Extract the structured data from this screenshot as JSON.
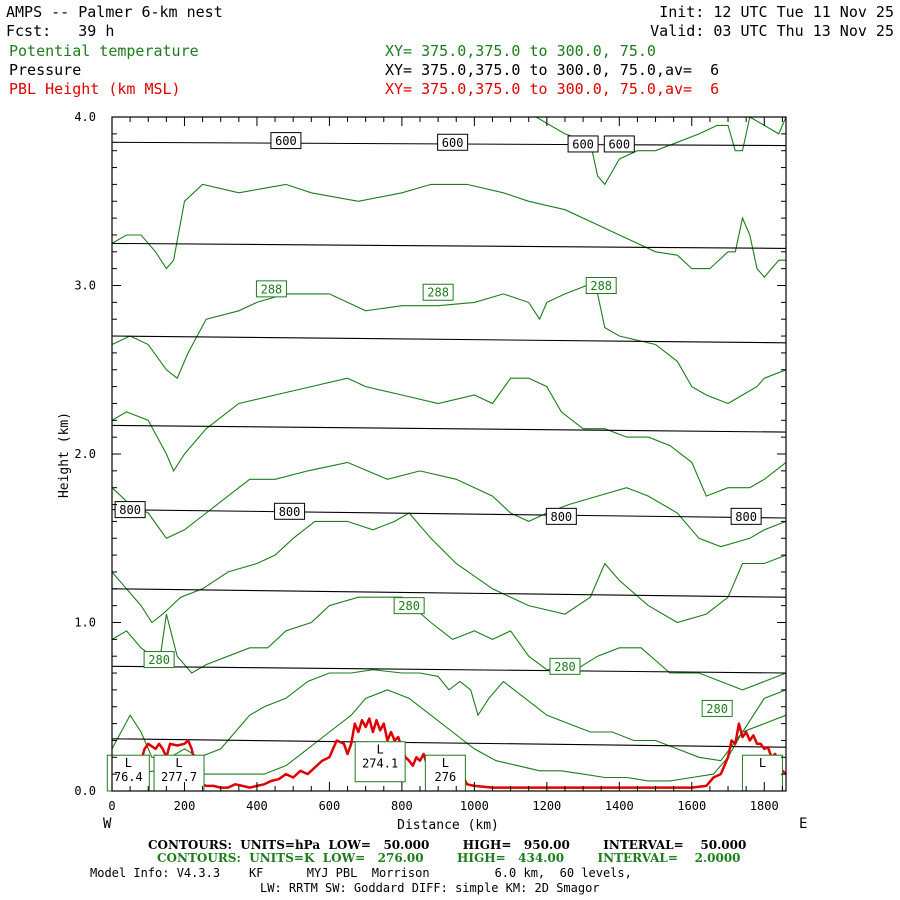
{
  "header": {
    "title": "AMPS -- Palmer 6-km nest",
    "init": "Init: 12 UTC Tue 11 Nov 25",
    "fcst": "Fcst:   39 h",
    "valid": "Valid: 03 UTC Thu 13 Nov 25",
    "field1_name": "Potential temperature",
    "field1_xy": "XY= 375.0,375.0 to 300.0, 75.0",
    "field2_name": "Pressure",
    "field2_xy": "XY= 375.0,375.0 to 300.0, 75.0,av=  6",
    "field3_name": "PBL Height (km MSL)",
    "field3_xy": "XY= 375.0,375.0 to 300.0, 75.0,av=  6"
  },
  "footer": {
    "contours1": "CONTOURS:  UNITS=hPa  LOW=   50.000        HIGH=   950.00        INTERVAL=    50.000",
    "contours2": "CONTOURS:  UNITS=K  LOW=   276.00        HIGH=   434.00        INTERVAL=    2.0000",
    "model1": "Model Info: V4.3.3    KF      MYJ PBL  Morrison         6.0 km,  60 levels,",
    "model2": "LW: RRTM SW: Goddard DIFF: simple KM: 2D Smagor"
  },
  "colors": {
    "theta": "#1e7b1e",
    "pressure": "#000000",
    "pbl": "#e00000"
  },
  "chart_data": {
    "type": "line",
    "xlabel": "Distance (km)",
    "ylabel": "Height (km)",
    "xlim": [
      0,
      1860
    ],
    "ylim": [
      0.0,
      4.0
    ],
    "xticks": [
      0,
      200,
      400,
      600,
      800,
      1000,
      1200,
      1400,
      1600,
      1800
    ],
    "yticks": [
      0.0,
      1.0,
      2.0,
      3.0,
      4.0
    ],
    "ytick_labels": [
      "0.0",
      "1.0",
      "2.0",
      "3.0",
      "4.0"
    ],
    "left_end": "W",
    "right_end": "E",
    "pressure_contours": [
      {
        "name": "600 hPa",
        "x": [
          0,
          1860
        ],
        "y": [
          3.85,
          3.83
        ]
      },
      {
        "name": "650 hPa",
        "x": [
          0,
          1860
        ],
        "y": [
          3.25,
          3.22
        ]
      },
      {
        "name": "700 hPa",
        "x": [
          0,
          1860
        ],
        "y": [
          2.7,
          2.66
        ]
      },
      {
        "name": "750 hPa",
        "x": [
          0,
          1860
        ],
        "y": [
          2.17,
          2.13
        ]
      },
      {
        "name": "800 hPa",
        "x": [
          0,
          1860
        ],
        "y": [
          1.67,
          1.62
        ]
      },
      {
        "name": "850 hPa",
        "x": [
          0,
          1860
        ],
        "y": [
          1.2,
          1.15
        ]
      },
      {
        "name": "900 hPa",
        "x": [
          0,
          1860
        ],
        "y": [
          0.74,
          0.7
        ]
      },
      {
        "name": "950 hPa",
        "x": [
          0,
          1860
        ],
        "y": [
          0.31,
          0.26
        ]
      }
    ],
    "pressure_labels": [
      {
        "text": "600",
        "x": 480,
        "y": 3.86
      },
      {
        "text": "600",
        "x": 940,
        "y": 3.85
      },
      {
        "text": "600",
        "x": 1300,
        "y": 3.84
      },
      {
        "text": "600",
        "x": 1400,
        "y": 3.84
      },
      {
        "text": "800",
        "x": 50,
        "y": 1.67
      },
      {
        "text": "800",
        "x": 490,
        "y": 1.66
      },
      {
        "text": "800",
        "x": 1240,
        "y": 1.63
      },
      {
        "text": "800",
        "x": 1750,
        "y": 1.63
      }
    ],
    "theta_contours": [
      {
        "name": "theta-top",
        "x": [
          1170,
          1250,
          1320,
          1340,
          1360,
          1400,
          1450,
          1500,
          1560,
          1620,
          1670,
          1700,
          1720,
          1740,
          1760,
          1800,
          1840,
          1860
        ],
        "y": [
          4.0,
          3.9,
          3.85,
          3.65,
          3.6,
          3.75,
          3.8,
          3.8,
          3.85,
          3.9,
          3.95,
          3.95,
          3.8,
          3.8,
          4.0,
          3.95,
          3.9,
          4.0
        ]
      },
      {
        "name": "theta-290",
        "x": [
          0,
          40,
          80,
          120,
          150,
          170,
          200,
          250,
          350,
          480,
          550,
          680,
          800,
          880,
          980,
          1080,
          1150,
          1250,
          1350,
          1400,
          1450,
          1500,
          1560,
          1600,
          1650,
          1700,
          1720,
          1740,
          1760,
          1780,
          1800,
          1840,
          1860
        ],
        "y": [
          3.25,
          3.3,
          3.3,
          3.2,
          3.1,
          3.15,
          3.5,
          3.6,
          3.55,
          3.6,
          3.55,
          3.5,
          3.55,
          3.6,
          3.6,
          3.55,
          3.5,
          3.45,
          3.35,
          3.3,
          3.25,
          3.2,
          3.18,
          3.1,
          3.1,
          3.2,
          3.2,
          3.4,
          3.3,
          3.1,
          3.05,
          3.15,
          3.15
        ]
      },
      {
        "name": "theta-288",
        "x": [
          0,
          50,
          100,
          150,
          180,
          210,
          260,
          350,
          400,
          480,
          600,
          700,
          800,
          900,
          1000,
          1080,
          1150,
          1180,
          1200,
          1250,
          1310,
          1340,
          1360,
          1400,
          1500,
          1560,
          1600,
          1640,
          1700,
          1740,
          1780,
          1800,
          1860
        ],
        "y": [
          2.65,
          2.7,
          2.65,
          2.5,
          2.45,
          2.6,
          2.8,
          2.85,
          2.9,
          2.95,
          2.95,
          2.85,
          2.88,
          2.88,
          2.9,
          2.95,
          2.9,
          2.8,
          2.9,
          2.95,
          3.0,
          2.95,
          2.75,
          2.7,
          2.65,
          2.55,
          2.4,
          2.35,
          2.3,
          2.35,
          2.4,
          2.45,
          2.5
        ]
      },
      {
        "name": "theta-286",
        "x": [
          0,
          40,
          100,
          150,
          170,
          200,
          260,
          350,
          450,
          550,
          650,
          700,
          800,
          900,
          1000,
          1050,
          1100,
          1150,
          1200,
          1240,
          1300,
          1360,
          1420,
          1480,
          1540,
          1600,
          1640,
          1700,
          1760,
          1800,
          1860
        ],
        "y": [
          2.2,
          2.25,
          2.2,
          2.0,
          1.9,
          2.0,
          2.15,
          2.3,
          2.35,
          2.4,
          2.45,
          2.4,
          2.35,
          2.3,
          2.35,
          2.3,
          2.45,
          2.45,
          2.4,
          2.25,
          2.15,
          2.15,
          2.1,
          2.1,
          2.05,
          1.95,
          1.75,
          1.8,
          1.8,
          1.85,
          1.95
        ]
      },
      {
        "name": "theta-284",
        "x": [
          0,
          50,
          100,
          150,
          200,
          260,
          320,
          380,
          450,
          540,
          650,
          760,
          850,
          950,
          1050,
          1100,
          1150,
          1200,
          1260,
          1340,
          1420,
          1480,
          1560,
          1620,
          1680,
          1760,
          1800,
          1860
        ],
        "y": [
          1.8,
          1.7,
          1.65,
          1.5,
          1.55,
          1.65,
          1.75,
          1.85,
          1.85,
          1.9,
          1.95,
          1.85,
          1.9,
          1.85,
          1.75,
          1.65,
          1.6,
          1.65,
          1.7,
          1.75,
          1.8,
          1.75,
          1.65,
          1.5,
          1.45,
          1.5,
          1.55,
          1.6
        ]
      },
      {
        "name": "theta-282",
        "x": [
          0,
          40,
          80,
          110,
          140,
          190,
          250,
          320,
          400,
          450,
          500,
          560,
          650,
          720,
          780,
          820,
          880,
          950,
          1050,
          1150,
          1250,
          1320,
          1360,
          1400,
          1480,
          1560,
          1640,
          1700,
          1740,
          1800,
          1860
        ],
        "y": [
          1.3,
          1.2,
          1.1,
          1.0,
          1.05,
          1.15,
          1.2,
          1.3,
          1.35,
          1.4,
          1.5,
          1.6,
          1.6,
          1.55,
          1.6,
          1.65,
          1.5,
          1.35,
          1.2,
          1.1,
          1.05,
          1.15,
          1.35,
          1.25,
          1.1,
          1.0,
          1.05,
          1.15,
          1.35,
          1.35,
          1.4
        ]
      },
      {
        "name": "theta-280",
        "x": [
          0,
          40,
          80,
          110,
          130,
          150,
          180,
          220,
          260,
          320,
          380,
          430,
          480,
          550,
          600,
          680,
          740,
          800,
          880,
          940,
          1000,
          1050,
          1100,
          1150,
          1200,
          1280,
          1340,
          1400,
          1460,
          1540,
          1620,
          1680,
          1740,
          1800,
          1860
        ],
        "y": [
          0.9,
          0.95,
          0.85,
          0.8,
          0.75,
          1.05,
          0.8,
          0.7,
          0.75,
          0.8,
          0.85,
          0.85,
          0.95,
          1.0,
          1.1,
          1.15,
          1.15,
          1.15,
          1.0,
          0.9,
          0.95,
          0.9,
          0.95,
          0.8,
          0.72,
          0.72,
          0.8,
          0.85,
          0.85,
          0.7,
          0.7,
          0.65,
          0.6,
          0.65,
          0.7
        ]
      },
      {
        "name": "theta-278",
        "x": [
          0,
          50,
          80,
          110,
          160,
          200,
          240,
          300,
          340,
          380,
          420,
          480,
          540,
          600,
          660,
          720,
          800,
          850,
          900,
          930,
          960,
          990,
          1010,
          1040,
          1080,
          1140,
          1200,
          1260,
          1320,
          1380,
          1440,
          1500,
          1560,
          1620,
          1680,
          1740,
          1800,
          1860
        ],
        "y": [
          0.25,
          0.45,
          0.35,
          0.2,
          0.2,
          0.25,
          0.2,
          0.25,
          0.35,
          0.45,
          0.5,
          0.55,
          0.65,
          0.7,
          0.7,
          0.72,
          0.7,
          0.7,
          0.68,
          0.6,
          0.65,
          0.6,
          0.45,
          0.55,
          0.65,
          0.55,
          0.45,
          0.4,
          0.35,
          0.35,
          0.3,
          0.3,
          0.25,
          0.2,
          0.18,
          0.35,
          0.55,
          0.6
        ]
      },
      {
        "name": "theta-276",
        "x": [
          0,
          60,
          120,
          180,
          240,
          300,
          360,
          420,
          480,
          540,
          600,
          660,
          700,
          760,
          820,
          880,
          940,
          1000,
          1060,
          1120,
          1180,
          1240,
          1300,
          1360,
          1420,
          1480,
          1540,
          1600,
          1660,
          1700,
          1740,
          1800,
          1860
        ],
        "y": [
          0.1,
          0.1,
          0.12,
          0.15,
          0.1,
          0.1,
          0.1,
          0.1,
          0.15,
          0.25,
          0.35,
          0.45,
          0.55,
          0.6,
          0.55,
          0.45,
          0.35,
          0.25,
          0.18,
          0.15,
          0.12,
          0.12,
          0.1,
          0.08,
          0.08,
          0.06,
          0.06,
          0.08,
          0.1,
          0.2,
          0.35,
          0.4,
          0.45
        ]
      }
    ],
    "theta_labels": [
      {
        "text": "288",
        "x": 440,
        "y": 2.98
      },
      {
        "text": "288",
        "x": 900,
        "y": 2.96
      },
      {
        "text": "288",
        "x": 1350,
        "y": 3.0
      },
      {
        "text": "280",
        "x": 820,
        "y": 1.1
      },
      {
        "text": "280",
        "x": 130,
        "y": 0.78
      },
      {
        "text": "280",
        "x": 1250,
        "y": 0.74
      },
      {
        "text": "280",
        "x": 1670,
        "y": 0.49
      }
    ],
    "pbl_height": {
      "x": [
        0,
        20,
        40,
        60,
        70,
        80,
        90,
        100,
        120,
        130,
        140,
        150,
        160,
        180,
        200,
        210,
        220,
        230,
        240,
        260,
        280,
        300,
        320,
        340,
        360,
        380,
        400,
        420,
        440,
        460,
        480,
        500,
        520,
        540,
        560,
        580,
        600,
        610,
        620,
        640,
        650,
        660,
        670,
        680,
        690,
        700,
        710,
        720,
        730,
        740,
        750,
        760,
        770,
        780,
        790,
        800,
        810,
        820,
        830,
        840,
        850,
        860,
        870,
        880,
        890,
        900,
        910,
        920,
        930,
        940,
        950,
        960,
        970,
        980,
        1000,
        1050,
        1100,
        1200,
        1300,
        1400,
        1500,
        1600,
        1640,
        1660,
        1680,
        1700,
        1710,
        1720,
        1730,
        1740,
        1750,
        1760,
        1770,
        1780,
        1790,
        1800,
        1810,
        1820,
        1830,
        1840,
        1850,
        1860
      ],
      "y": [
        0.15,
        0.12,
        0.15,
        0.1,
        0.13,
        0.18,
        0.25,
        0.28,
        0.25,
        0.28,
        0.25,
        0.2,
        0.28,
        0.27,
        0.28,
        0.3,
        0.25,
        0.15,
        0.05,
        0.03,
        0.03,
        0.02,
        0.02,
        0.04,
        0.03,
        0.02,
        0.03,
        0.04,
        0.06,
        0.07,
        0.1,
        0.08,
        0.12,
        0.1,
        0.14,
        0.18,
        0.2,
        0.25,
        0.3,
        0.28,
        0.22,
        0.28,
        0.4,
        0.35,
        0.42,
        0.38,
        0.43,
        0.35,
        0.42,
        0.36,
        0.4,
        0.3,
        0.35,
        0.3,
        0.32,
        0.25,
        0.2,
        0.18,
        0.15,
        0.2,
        0.18,
        0.22,
        0.15,
        0.12,
        0.1,
        0.12,
        0.15,
        0.12,
        0.1,
        0.14,
        0.1,
        0.06,
        0.08,
        0.04,
        0.03,
        0.02,
        0.02,
        0.02,
        0.02,
        0.02,
        0.02,
        0.02,
        0.03,
        0.08,
        0.1,
        0.2,
        0.3,
        0.28,
        0.4,
        0.32,
        0.35,
        0.3,
        0.33,
        0.28,
        0.28,
        0.25,
        0.26,
        0.2,
        0.22,
        0.15,
        0.12,
        0.1
      ]
    },
    "pbl_low_labels": [
      {
        "letter": "L",
        "value": "76.4",
        "x": 45,
        "y": 0.07
      },
      {
        "letter": "L",
        "value": "277.7",
        "x": 185,
        "y": 0.07
      },
      {
        "letter": "L",
        "value": "274.1",
        "x": 740,
        "y": 0.15
      },
      {
        "letter": "L",
        "value": "276",
        "x": 920,
        "y": 0.07
      },
      {
        "letter": "L",
        "value": "",
        "x": 1795,
        "y": 0.07
      }
    ]
  }
}
